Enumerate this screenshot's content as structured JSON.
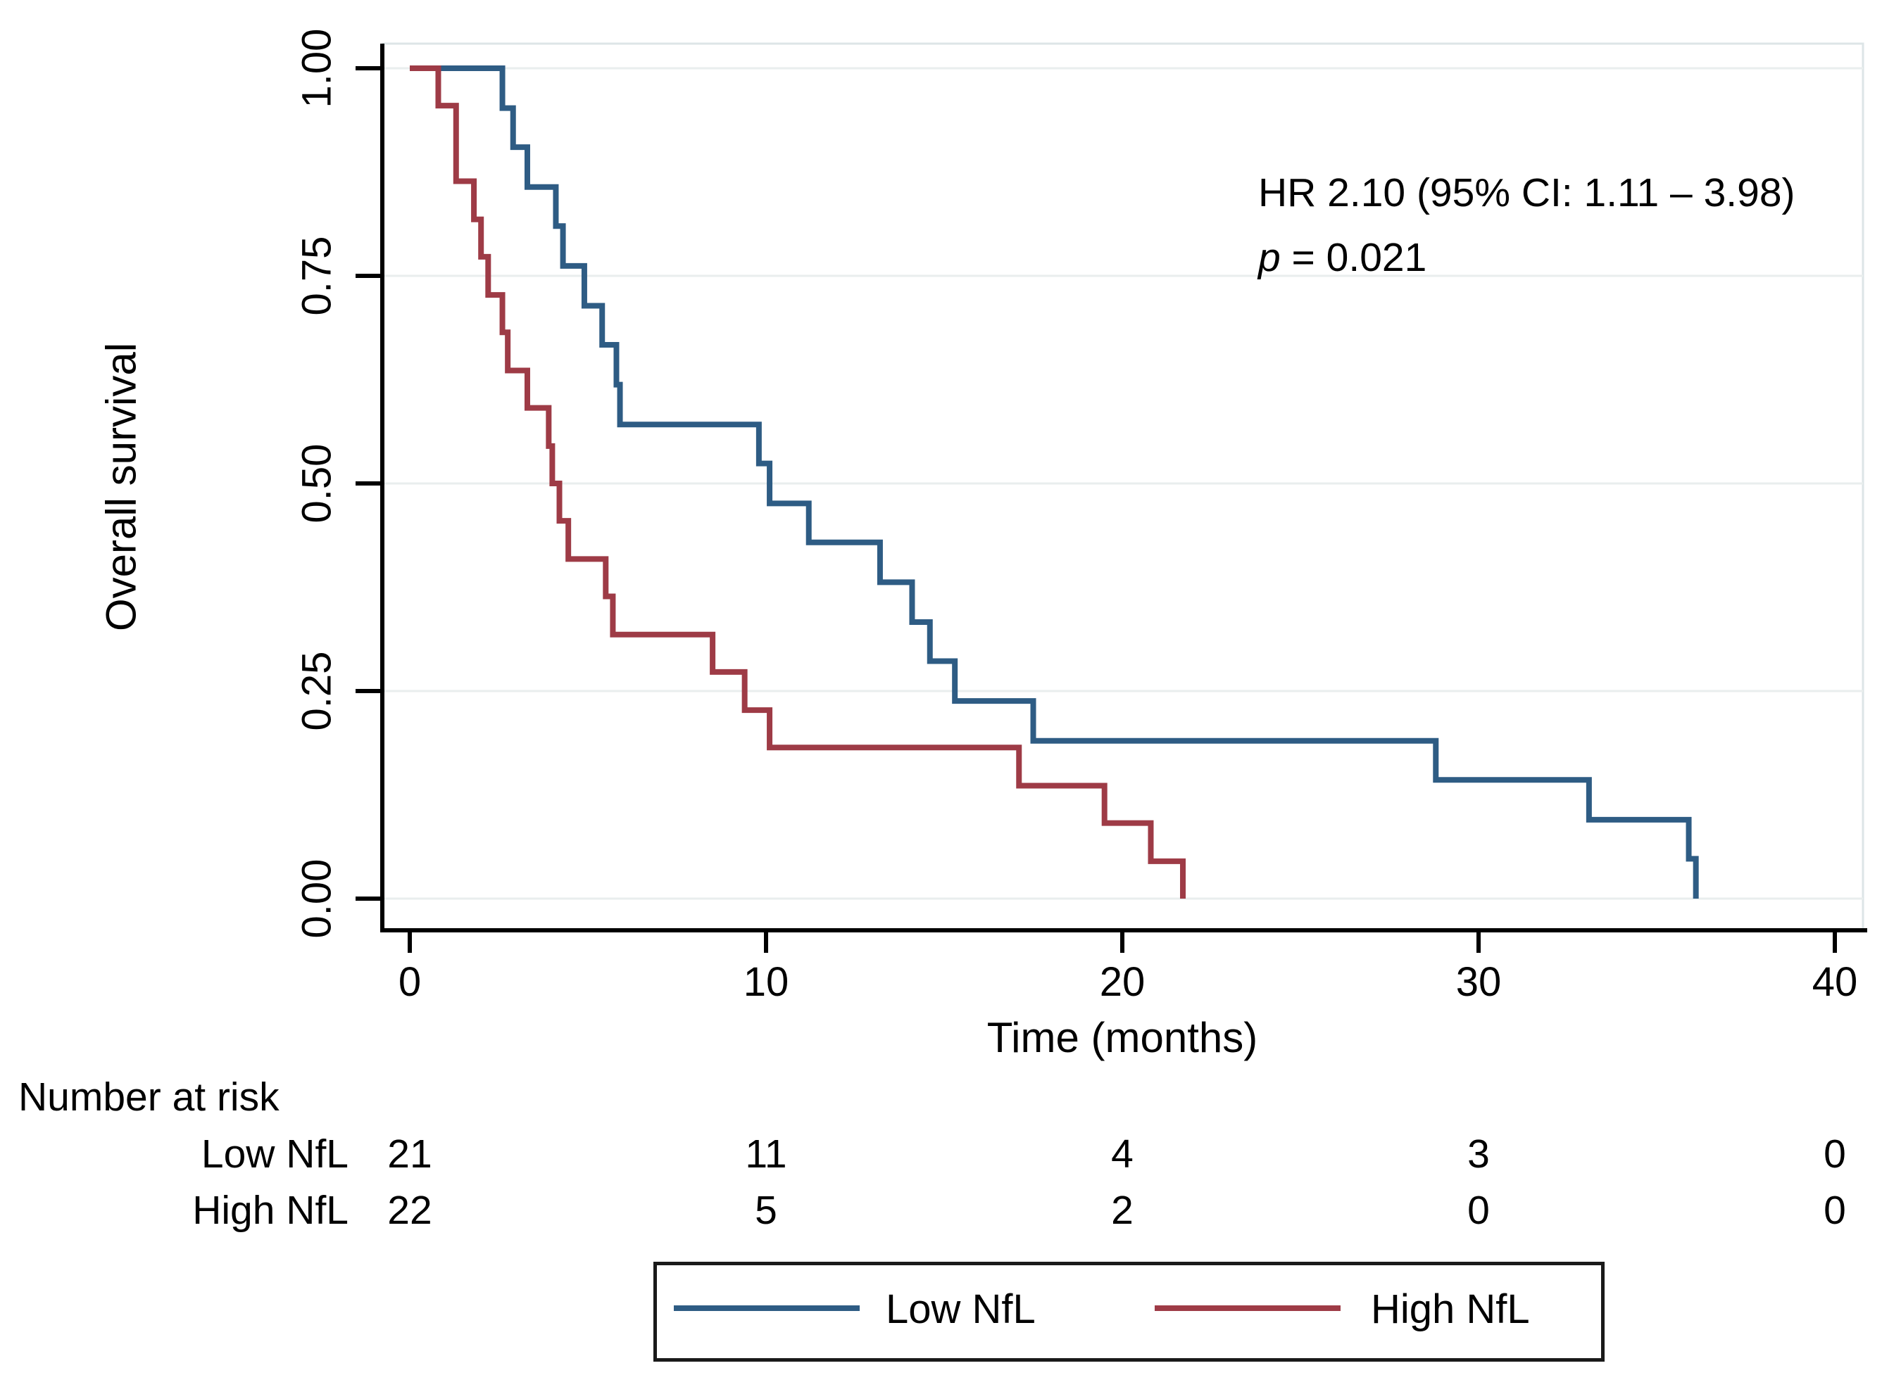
{
  "figure": {
    "type": "kaplan-meier-survival-plot"
  },
  "axis": {
    "y": {
      "title": "Overall survival",
      "tick_labels": [
        "0.00",
        "0.25",
        "0.50",
        "0.75",
        "1.00"
      ],
      "tick_values": [
        0,
        0.25,
        0.5,
        0.75,
        1.0
      ]
    },
    "x": {
      "title": "Time (months)",
      "tick_labels": [
        "0",
        "10",
        "20",
        "30",
        "40"
      ],
      "tick_values": [
        0,
        10,
        20,
        30,
        40
      ]
    }
  },
  "annotation": {
    "hr": "HR 2.10 (95% CI: 1.11 – 3.98)",
    "p_var": "p",
    "p_rest": " = 0.021"
  },
  "risk_table": {
    "title": "Number at risk",
    "times": [
      0,
      10,
      20,
      30,
      40
    ],
    "rows": [
      {
        "label": "Low NfL",
        "values": [
          21,
          11,
          4,
          3,
          0
        ]
      },
      {
        "label": "High NfL",
        "values": [
          22,
          5,
          2,
          0,
          0
        ]
      }
    ]
  },
  "legend": {
    "items": [
      {
        "label": "Low NfL",
        "color": "#2e5c84"
      },
      {
        "label": "High NfL",
        "color": "#9e3b46"
      }
    ]
  },
  "colors": {
    "low_nfl": "#2e5c84",
    "high_nfl": "#9e3b46",
    "gridline": "#e9eeee",
    "plot_border": "#dde5e7",
    "axis": "#000000",
    "background": "#ffffff"
  },
  "chart_data": {
    "type": "line",
    "subtype": "kaplan-meier-step",
    "title": "",
    "xlabel": "Time (months)",
    "ylabel": "Overall survival",
    "xlim": [
      0,
      40
    ],
    "ylim": [
      0,
      1
    ],
    "x_ticks": [
      0,
      10,
      20,
      30,
      40
    ],
    "y_ticks": [
      0,
      0.25,
      0.5,
      0.75,
      1.0
    ],
    "grid": true,
    "legend_position": "bottom",
    "series": [
      {
        "name": "Low NfL",
        "color": "#2e5c84",
        "n": 21,
        "start": [
          0,
          1.0
        ],
        "steps": [
          [
            2.6,
            0.952
          ],
          [
            2.9,
            0.905
          ],
          [
            3.3,
            0.857
          ],
          [
            4.1,
            0.81
          ],
          [
            4.3,
            0.762
          ],
          [
            4.9,
            0.714
          ],
          [
            5.4,
            0.667
          ],
          [
            5.8,
            0.619
          ],
          [
            5.9,
            0.571
          ],
          [
            9.8,
            0.524
          ],
          [
            10.1,
            0.476
          ],
          [
            11.2,
            0.429
          ],
          [
            13.2,
            0.381
          ],
          [
            14.1,
            0.333
          ],
          [
            14.6,
            0.286
          ],
          [
            15.3,
            0.238
          ],
          [
            17.5,
            0.19
          ],
          [
            28.8,
            0.143
          ],
          [
            33.1,
            0.095
          ],
          [
            35.9,
            0.048
          ],
          [
            36.1,
            0.0
          ]
        ]
      },
      {
        "name": "High NfL",
        "color": "#9e3b46",
        "n": 22,
        "start": [
          0,
          1.0
        ],
        "steps": [
          [
            0.8,
            0.955
          ],
          [
            1.3,
            0.864
          ],
          [
            1.8,
            0.818
          ],
          [
            2.0,
            0.773
          ],
          [
            2.2,
            0.727
          ],
          [
            2.6,
            0.682
          ],
          [
            2.75,
            0.636
          ],
          [
            3.3,
            0.591
          ],
          [
            3.9,
            0.545
          ],
          [
            4.0,
            0.5
          ],
          [
            4.2,
            0.455
          ],
          [
            4.45,
            0.409
          ],
          [
            5.5,
            0.364
          ],
          [
            5.7,
            0.318
          ],
          [
            8.5,
            0.273
          ],
          [
            9.4,
            0.227
          ],
          [
            10.1,
            0.182
          ],
          [
            17.1,
            0.136
          ],
          [
            19.5,
            0.091
          ],
          [
            20.8,
            0.045
          ],
          [
            21.7,
            0.0
          ]
        ]
      }
    ]
  }
}
